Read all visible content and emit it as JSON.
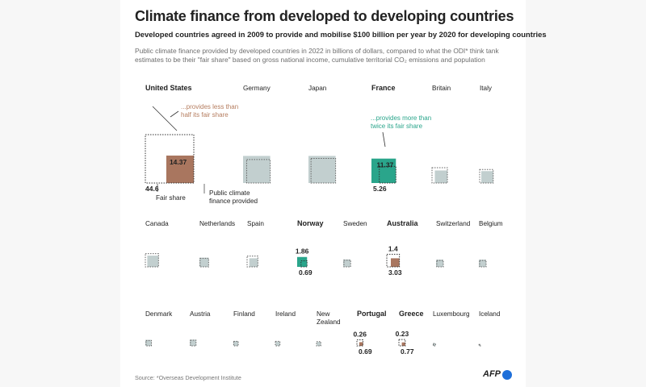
{
  "header": {
    "title": "Climate finance from developed to developing countries",
    "subtitle": "Developed countries agreed in 2009 to provide and mobilise $100 billion per year by 2020 for developing countries",
    "intro_line1": "Public climate finance provided by developed countries in 2022 in billions of dollars, compared to what the ODI* think tank",
    "intro_line2": "estimates to be their \"fair share\" based on gross national income, cumulative territorial CO₂ emissions and population"
  },
  "footer": {
    "source": "Source: *Overseas Development Institute",
    "logo": "AFP"
  },
  "colors": {
    "below_fair_share": "#a9765f",
    "above_fair_share": "#2aa58b",
    "neutral": "#c2cfcf",
    "annotation_below": "#b57d5f",
    "annotation_above": "#2aa58b"
  },
  "annotations": {
    "less_than_half": "...provides less than half its fair share",
    "more_than_twice": "...provides more than twice its fair share",
    "fair_share_label": "Fair share",
    "provided_label": "Public climate finance provided"
  },
  "chart_data": {
    "type": "proportional-squares",
    "units": "billions of dollars",
    "series": [
      {
        "name": "Fair share",
        "style": "dotted outline"
      },
      {
        "name": "Public climate finance provided",
        "style": "filled square"
      }
    ],
    "countries": [
      {
        "name": "United States",
        "fair_share": 44.6,
        "provided": 14.37,
        "highlight": "below",
        "label_fair": "44.6",
        "label_provided": "14.37"
      },
      {
        "name": "Germany",
        "fair_share": 10.5,
        "provided": 14.0,
        "highlight": "none"
      },
      {
        "name": "Japan",
        "fair_share": 11.5,
        "provided": 14.0,
        "highlight": "none"
      },
      {
        "name": "France",
        "fair_share": 5.26,
        "provided": 11.37,
        "highlight": "above",
        "label_fair": "5.26",
        "label_provided": "11.37"
      },
      {
        "name": "Britain",
        "fair_share": 4.5,
        "provided": 3.0,
        "highlight": "none"
      },
      {
        "name": "Italy",
        "fair_share": 3.5,
        "provided": 2.7,
        "highlight": "none"
      },
      {
        "name": "Canada",
        "fair_share": 3.3,
        "provided": 2.4,
        "highlight": "none"
      },
      {
        "name": "Netherlands",
        "fair_share": 1.4,
        "provided": 1.6,
        "highlight": "none"
      },
      {
        "name": "Spain",
        "fair_share": 2.2,
        "provided": 1.4,
        "highlight": "none"
      },
      {
        "name": "Norway",
        "fair_share": 0.69,
        "provided": 1.86,
        "highlight": "above",
        "label_fair": "0.69",
        "label_provided": "1.86"
      },
      {
        "name": "Sweden",
        "fair_share": 0.85,
        "provided": 1.05,
        "highlight": "none"
      },
      {
        "name": "Australia",
        "fair_share": 3.03,
        "provided": 1.4,
        "highlight": "below",
        "label_fair": "3.03",
        "label_provided": "1.4"
      },
      {
        "name": "Switzerland",
        "fair_share": 0.8,
        "provided": 1.0,
        "highlight": "none"
      },
      {
        "name": "Belgium",
        "fair_share": 0.8,
        "provided": 1.0,
        "highlight": "none"
      },
      {
        "name": "Denmark",
        "fair_share": 0.55,
        "provided": 0.7,
        "highlight": "none"
      },
      {
        "name": "Austria",
        "fair_share": 0.6,
        "provided": 0.75,
        "highlight": "none"
      },
      {
        "name": "Finland",
        "fair_share": 0.4,
        "provided": 0.45,
        "highlight": "none"
      },
      {
        "name": "Ireland",
        "fair_share": 0.4,
        "provided": 0.35,
        "highlight": "none"
      },
      {
        "name": "New Zealand",
        "fair_share": 0.34,
        "provided": 0.3,
        "highlight": "none"
      },
      {
        "name": "Portugal",
        "fair_share": 0.69,
        "provided": 0.26,
        "highlight": "below",
        "label_fair": "0.69",
        "label_provided": "0.26"
      },
      {
        "name": "Greece",
        "fair_share": 0.77,
        "provided": 0.23,
        "highlight": "below",
        "label_fair": "0.77",
        "label_provided": "0.23"
      },
      {
        "name": "Luxembourg",
        "fair_share": 0.1,
        "provided": 0.14,
        "highlight": "none"
      },
      {
        "name": "Iceland",
        "fair_share": 0.04,
        "provided": 0.05,
        "highlight": "none"
      }
    ]
  }
}
